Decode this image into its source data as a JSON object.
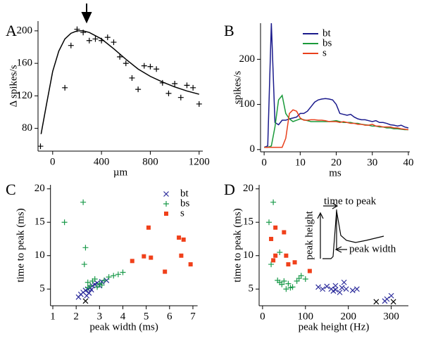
{
  "chart_data": [
    {
      "type": "scatter",
      "panel_label": "A",
      "xlabel": "µm",
      "ylabel": "Δ spikes/s",
      "xlim": [
        -120,
        1230
      ],
      "ylim": [
        52,
        212
      ],
      "xticks": [
        0,
        400,
        800,
        1200
      ],
      "yticks": [
        80,
        120,
        160,
        200
      ],
      "color": "#000000",
      "marker": "plus",
      "x": [
        -100,
        100,
        150,
        200,
        250,
        300,
        350,
        400,
        450,
        500,
        550,
        600,
        650,
        700,
        750,
        800,
        850,
        900,
        950,
        1000,
        1050,
        1100,
        1150,
        1200
      ],
      "values": [
        58,
        130,
        182,
        202,
        198,
        188,
        190,
        188,
        192,
        186,
        168,
        160,
        142,
        128,
        157,
        156,
        153,
        136,
        123,
        135,
        118,
        133,
        130,
        110
      ],
      "fit_x": [
        -95,
        -50,
        0,
        50,
        100,
        150,
        200,
        250,
        300,
        400,
        500,
        600,
        700,
        800,
        900,
        1000,
        1100,
        1200
      ],
      "fit_values": [
        73,
        110,
        150,
        175,
        190,
        197,
        200,
        200,
        198,
        190,
        178,
        165,
        153,
        144,
        137,
        131,
        126,
        122
      ]
    },
    {
      "type": "line",
      "panel_label": "B",
      "xlabel": "ms",
      "ylabel": "spikes/s",
      "xlim": [
        -1,
        40.4
      ],
      "ylim": [
        -5,
        280
      ],
      "xticks": [
        0,
        10,
        20,
        30,
        40
      ],
      "yticks": [
        0,
        100,
        200
      ],
      "x": [
        0,
        1,
        2,
        3,
        4,
        5,
        6,
        7,
        8,
        9,
        10,
        11,
        12,
        13,
        14,
        15,
        16,
        17,
        18,
        19,
        20,
        21,
        22,
        23,
        24,
        25,
        26,
        27,
        28,
        29,
        30,
        31,
        32,
        33,
        34,
        35,
        36,
        37,
        38,
        39,
        40
      ],
      "series": [
        {
          "name": "bt",
          "color": "#1a1a8c",
          "values": [
            5,
            8,
            280,
            60,
            55,
            65,
            65,
            68,
            70,
            72,
            80,
            80,
            85,
            95,
            105,
            110,
            112,
            113,
            112,
            110,
            100,
            80,
            78,
            76,
            78,
            72,
            68,
            66,
            66,
            64,
            62,
            64,
            60,
            60,
            58,
            55,
            54,
            52,
            54,
            50,
            48
          ]
        },
        {
          "name": "bs",
          "color": "#1a9a3a",
          "values": [
            5,
            5,
            8,
            50,
            110,
            120,
            80,
            68,
            62,
            65,
            68,
            66,
            64,
            62,
            62,
            62,
            62,
            62,
            62,
            63,
            64,
            62,
            60,
            60,
            60,
            58,
            58,
            56,
            55,
            54,
            52,
            52,
            50,
            50,
            48,
            48,
            46,
            46,
            45,
            44,
            44
          ]
        },
        {
          "name": "s",
          "color": "#e8401c",
          "values": [
            5,
            5,
            5,
            5,
            5,
            5,
            25,
            80,
            88,
            85,
            70,
            65,
            65,
            66,
            66,
            65,
            65,
            64,
            62,
            62,
            62,
            60,
            62,
            60,
            58,
            58,
            56,
            56,
            54,
            54,
            56,
            52,
            52,
            50,
            50,
            50,
            48,
            48,
            46,
            45,
            44
          ]
        }
      ]
    },
    {
      "type": "scatter",
      "panel_label": "C",
      "xlabel": "peak width (ms)",
      "ylabel": "time to peak (ms)",
      "xlim": [
        0.9,
        7.2
      ],
      "ylim": [
        2.5,
        20.6
      ],
      "xticks": [
        1,
        2,
        3,
        4,
        5,
        6,
        7
      ],
      "yticks": [
        5,
        10,
        15,
        20
      ],
      "series": [
        {
          "name": "bt",
          "color": "#2a2a9a",
          "marker": "cross",
          "x": [
            2.1,
            2.2,
            2.3,
            2.4,
            2.5,
            2.6,
            2.7,
            2.8,
            2.55,
            2.45,
            2.9,
            3.1,
            3.3,
            3.0,
            2.65
          ],
          "values": [
            3.8,
            4.2,
            4.5,
            4.8,
            5,
            5.2,
            5.5,
            5.7,
            4.4,
            4,
            5.9,
            6.1,
            6.3,
            5.5,
            4.9
          ]
        },
        {
          "name": "bs",
          "color": "#1a9a4a",
          "marker": "plus",
          "x": [
            1.5,
            2.3,
            2.35,
            2.4,
            2.5,
            2.7,
            2.6,
            2.8,
            2.9,
            3.0,
            3.2,
            3.4,
            3.6,
            3.8,
            4.0,
            2.5,
            3.1
          ],
          "values": [
            15,
            18,
            8.7,
            11.2,
            6,
            6.2,
            5.5,
            6.5,
            5.3,
            5.8,
            6.3,
            6.8,
            7,
            7.2,
            7.5,
            5.2,
            5.6
          ]
        },
        {
          "name": "s",
          "color": "#f0401a",
          "marker": "square",
          "x": [
            4.4,
            4.9,
            5.1,
            5.2,
            5.8,
            6.4,
            6.6,
            6.5,
            6.9
          ],
          "values": [
            9.2,
            9.9,
            14.2,
            9.7,
            7.6,
            12.7,
            12.4,
            10,
            8.7
          ]
        }
      ],
      "highlight": {
        "color": "#000000",
        "marker": "cross",
        "x": [
          2.4
        ],
        "values": [
          3.2
        ]
      }
    },
    {
      "type": "scatter",
      "panel_label": "D",
      "xlabel": "peak height (Hz)",
      "ylabel": "time to peak (ms)",
      "xlim": [
        -8,
        340
      ],
      "ylim": [
        2.5,
        20.6
      ],
      "xticks": [
        0,
        100,
        200,
        300
      ],
      "yticks": [
        5,
        10,
        15,
        20
      ],
      "series": [
        {
          "name": "bt",
          "color": "#2a2a9a",
          "marker": "cross",
          "x": [
            130,
            140,
            150,
            160,
            165,
            170,
            180,
            185,
            190,
            195,
            210,
            220,
            290,
            300,
            285,
            170
          ],
          "values": [
            5.3,
            5,
            5.4,
            5,
            4.7,
            5.5,
            4.5,
            5.2,
            6,
            5,
            4.8,
            5,
            3.5,
            4,
            3.2,
            4.9
          ]
        },
        {
          "name": "bs",
          "color": "#1a9a4a",
          "marker": "plus",
          "x": [
            15,
            25,
            20,
            40,
            40,
            50,
            60,
            55,
            70,
            80,
            90,
            100,
            45,
            35,
            65,
            85
          ],
          "values": [
            15,
            18,
            8.7,
            10.5,
            6,
            6.2,
            5.8,
            5,
            5.3,
            6.2,
            7,
            6.5,
            5.7,
            6.3,
            5.2,
            6.6
          ]
        },
        {
          "name": "s",
          "color": "#f0401a",
          "marker": "square",
          "x": [
            20,
            30,
            50,
            30,
            55,
            60,
            75,
            110,
            25
          ],
          "values": [
            12.5,
            14.2,
            13.5,
            10,
            10,
            8.7,
            9,
            7.7,
            9.3
          ]
        }
      ],
      "highlight": {
        "color": "#000000",
        "marker": "cross",
        "x": [
          265,
          305
        ],
        "values": [
          3.1,
          3.1
        ]
      },
      "annotations": [
        "time to peak",
        "peak height",
        "peak width"
      ]
    }
  ]
}
